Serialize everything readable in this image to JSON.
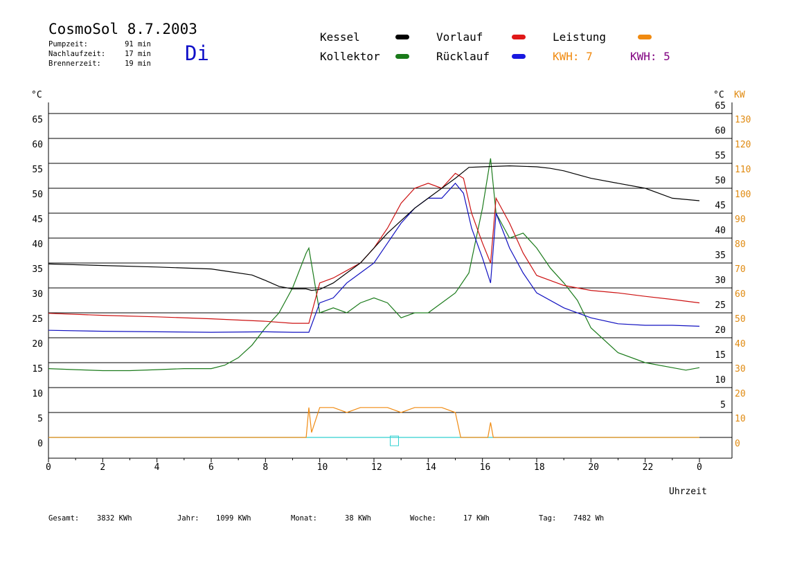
{
  "header": {
    "title": "CosmoSol 8.7.2003",
    "day": "Di",
    "stats": [
      {
        "label": "Pumpzeit:",
        "value": "91 min"
      },
      {
        "label": "Nachlaufzeit:",
        "value": "17 min"
      },
      {
        "label": "Brennerzeit:",
        "value": "19 min"
      }
    ]
  },
  "legend": {
    "kessel": "Kessel",
    "kollektor": "Kollektor",
    "vorlauf": "Vorlauf",
    "ruecklauf": "Rücklauf",
    "leistung": "Leistung",
    "kwh1": "KWH: 7",
    "kwh2": "KWH: 5"
  },
  "footer": {
    "gesamt_label": "Gesamt:",
    "gesamt_value": "3832 KWh",
    "jahr_label": "Jahr:",
    "jahr_value": "1099 KWh",
    "monat_label": "Monat:",
    "monat_value": "38 KWh",
    "woche_label": "Woche:",
    "woche_value": "17 KWh",
    "tag_label": "Tag:",
    "tag_value": "7482 Wh"
  },
  "colors": {
    "kessel": "#000000",
    "kollektor": "#1a7a1a",
    "vorlauf": "#cc1010",
    "ruecklauf": "#1010c0",
    "leistung": "#f08a10",
    "kwh2": "#800080",
    "baseline": "#30d0d0"
  },
  "chart_data": {
    "type": "line",
    "xlabel": "Uhrzeit",
    "ylabel": "°C",
    "y2label": "KW",
    "xlim": [
      0,
      24
    ],
    "ylim": [
      -4,
      70
    ],
    "x_ticks": [
      "0",
      "2",
      "4",
      "6",
      "8",
      "10",
      "12",
      "14",
      "16",
      "18",
      "20",
      "22",
      "0"
    ],
    "y_ticks_left": [
      "0",
      "5",
      "10",
      "15",
      "20",
      "25",
      "30",
      "35",
      "40",
      "45",
      "50",
      "55",
      "60",
      "65"
    ],
    "y_ticks_right": [
      "5",
      "10",
      "15",
      "20",
      "25",
      "30",
      "35",
      "40",
      "45",
      "50",
      "55",
      "60",
      "65"
    ],
    "y2_ticks": [
      "0",
      "10",
      "20",
      "30",
      "40",
      "50",
      "60",
      "70",
      "80",
      "90",
      "100",
      "110",
      "120",
      "130"
    ],
    "grid": "horizontal",
    "series": [
      {
        "name": "Kessel",
        "x": [
          0,
          2,
          4,
          6,
          6.5,
          7.5,
          8,
          8.5,
          9,
          9.5,
          9.7,
          10,
          10.5,
          11,
          11.5,
          12,
          12.5,
          13,
          13.5,
          14,
          14.5,
          15,
          15.5,
          16,
          17,
          18,
          18.5,
          19,
          20,
          21,
          22,
          22.5,
          23,
          24
        ],
        "y": [
          34.8,
          34.5,
          34.2,
          33.8,
          33.4,
          32.6,
          31.5,
          30.3,
          29.8,
          29.8,
          29.5,
          29.7,
          31,
          33,
          35,
          38,
          41,
          43.5,
          46,
          48,
          50,
          52,
          54.2,
          54.3,
          54.5,
          54.3,
          54,
          53.5,
          52,
          51,
          50,
          49,
          48,
          47.5
        ]
      },
      {
        "name": "Vorlauf",
        "x": [
          0,
          2,
          4,
          6,
          8,
          9,
          9.6,
          10,
          10.5,
          11,
          11.5,
          12,
          12.5,
          13,
          13.5,
          14,
          14.5,
          15,
          15.3,
          15.6,
          16,
          16.3,
          16.5,
          17,
          17.5,
          18,
          19,
          20,
          21,
          22,
          23,
          24
        ],
        "y": [
          24.9,
          24.5,
          24.2,
          23.8,
          23.3,
          22.9,
          22.9,
          31,
          32,
          33.5,
          35,
          38,
          42,
          47,
          50,
          51,
          50,
          53,
          52,
          45,
          39,
          35,
          48,
          43,
          37,
          32.5,
          30.5,
          29.5,
          29,
          28.3,
          27.7,
          27
        ]
      },
      {
        "name": "Rücklauf",
        "x": [
          0,
          2,
          4,
          6,
          8,
          9,
          9.6,
          10,
          10.5,
          11,
          11.5,
          12,
          12.5,
          13,
          13.5,
          14,
          14.5,
          15,
          15.3,
          15.6,
          16,
          16.3,
          16.5,
          17,
          17.5,
          18,
          19,
          20,
          21,
          22,
          23,
          24
        ],
        "y": [
          21.5,
          21.3,
          21.2,
          21.1,
          21.2,
          21.1,
          21.1,
          27,
          28,
          31,
          33,
          35,
          39,
          43,
          46,
          48,
          48,
          51,
          49,
          42,
          36,
          31,
          45,
          38,
          33,
          29,
          26,
          24,
          22.8,
          22.5,
          22.5,
          22.3
        ]
      },
      {
        "name": "Kollektor",
        "x": [
          0,
          1,
          2,
          3,
          4,
          5,
          6,
          6.5,
          7,
          7.5,
          8,
          8.5,
          9,
          9.5,
          9.6,
          10,
          10.5,
          11,
          11.5,
          12,
          12.5,
          13,
          13.5,
          14,
          14.5,
          15,
          15.5,
          16,
          16.3,
          16.5,
          17,
          17.5,
          18,
          18.5,
          19,
          19.5,
          20,
          21,
          22,
          23,
          23.5,
          24
        ],
        "y": [
          13.8,
          13.6,
          13.4,
          13.4,
          13.6,
          13.8,
          13.8,
          14.5,
          16,
          18.5,
          22,
          25,
          30,
          37,
          38,
          25,
          26,
          25,
          27,
          28,
          27,
          24,
          25,
          25,
          27,
          29,
          33,
          46,
          56,
          45,
          40,
          41,
          38,
          34,
          31,
          27.5,
          22,
          17,
          15,
          14,
          13.5,
          14
        ]
      },
      {
        "name": "Leistung",
        "x": [
          0,
          9.5,
          9.6,
          9.7,
          10,
          10.5,
          11,
          11.5,
          12,
          12.5,
          13,
          13.5,
          14,
          14.5,
          15,
          15.2,
          16.2,
          16.3,
          16.4,
          24
        ],
        "y": [
          0,
          0,
          6,
          1,
          6,
          6,
          5,
          6,
          6,
          6,
          5,
          6,
          6,
          6,
          5,
          0,
          0,
          3,
          0,
          0
        ]
      }
    ]
  }
}
